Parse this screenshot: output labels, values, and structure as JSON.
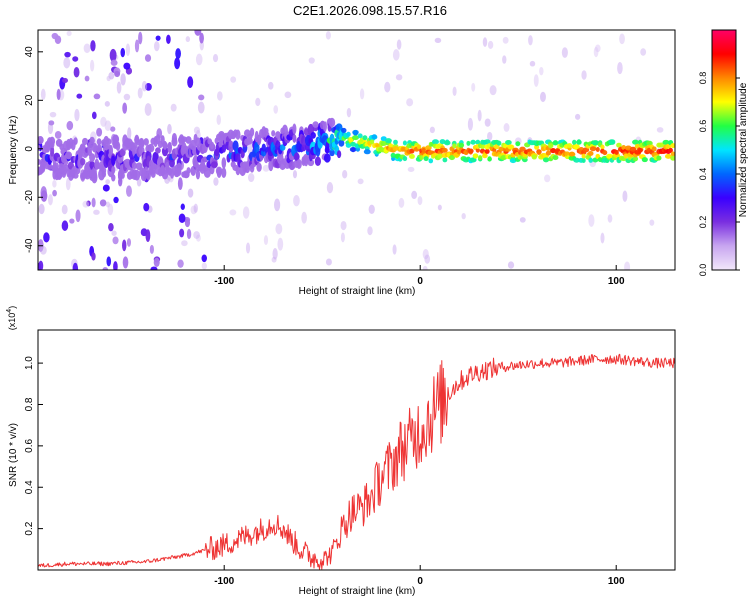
{
  "figure_title": "C2E1.2026.098.15.57.R16",
  "chart_data": [
    {
      "type": "heatmap",
      "title": "C2E1.2026.098.15.57.R16",
      "xlabel": "Height of straight line (km)",
      "ylabel": "Frequency (Hz)",
      "xlim": [
        -195,
        130
      ],
      "ylim": [
        -50,
        49
      ],
      "x_ticks": [
        -100,
        0,
        100
      ],
      "x_tick_labels": [
        "-100",
        "0",
        "100"
      ],
      "y_ticks": [
        -40,
        -20,
        0,
        20,
        40
      ],
      "y_tick_labels": [
        "-40",
        "-20",
        "0",
        "20",
        "40"
      ],
      "colorbar": {
        "label": "Normalized spectral amplitude",
        "range": [
          0,
          1
        ],
        "ticks": [
          0.0,
          0.2,
          0.4,
          0.6,
          0.8
        ],
        "tick_labels": [
          "0.0",
          "0.2",
          "0.4",
          "0.6",
          "0.8"
        ],
        "colormap": [
          "#f2e8fa",
          "#c8a6f0",
          "#7a2fe0",
          "#3a00ff",
          "#0066ff",
          "#00e5ff",
          "#22ff44",
          "#ffff00",
          "#ff8800",
          "#ff0000",
          "#ff0066"
        ]
      },
      "description_points": {
        "ridge_x": [
          -140,
          -120,
          -100,
          -80,
          -60,
          -50,
          -40,
          -30,
          -20,
          -10,
          0,
          20,
          50,
          80,
          100,
          130
        ],
        "ridge_freq": [
          -4,
          -3,
          -2,
          0,
          1,
          3,
          4,
          3,
          1,
          -1,
          -1,
          -1,
          -1,
          -1,
          -1,
          -1
        ],
        "ridge_amplitude": [
          0.35,
          0.4,
          0.45,
          0.5,
          0.5,
          0.6,
          0.7,
          0.75,
          0.8,
          0.85,
          0.9,
          0.88,
          0.9,
          0.9,
          0.92,
          0.92
        ]
      }
    },
    {
      "type": "line",
      "xlabel": "Height of straight line (km)",
      "ylabel": "SNR (10 * v/v)",
      "y_multiplier_label": "(x10",
      "y_multiplier_exp": "4",
      "y_multiplier_close": ")",
      "xlim": [
        -195,
        130
      ],
      "ylim": [
        0,
        1.16
      ],
      "x_ticks": [
        -100,
        0,
        100
      ],
      "x_tick_labels": [
        "-100",
        "0",
        "100"
      ],
      "y_ticks": [
        0.2,
        0.4,
        0.6,
        0.8,
        1.0
      ],
      "y_tick_labels": [
        "0.2",
        "0.4",
        "0.6",
        "0.8",
        "1.0"
      ],
      "series": [
        {
          "name": "SNR",
          "color": "#ee3333",
          "x": [
            -195,
            -180,
            -160,
            -140,
            -120,
            -100,
            -90,
            -80,
            -75,
            -70,
            -65,
            -60,
            -55,
            -50,
            -45,
            -40,
            -35,
            -30,
            -25,
            -20,
            -15,
            -10,
            -5,
            0,
            5,
            10,
            15,
            20,
            25,
            30,
            40,
            50,
            60,
            70,
            80,
            90,
            100,
            110,
            120,
            130
          ],
          "y": [
            0.02,
            0.03,
            0.03,
            0.04,
            0.07,
            0.12,
            0.16,
            0.2,
            0.23,
            0.2,
            0.14,
            0.09,
            0.06,
            0.05,
            0.08,
            0.2,
            0.28,
            0.3,
            0.35,
            0.45,
            0.5,
            0.58,
            0.62,
            0.68,
            0.74,
            0.8,
            0.86,
            0.91,
            0.94,
            0.96,
            0.98,
            0.99,
            1.0,
            1.0,
            1.01,
            1.02,
            1.02,
            1.01,
            1.0,
            1.0
          ]
        }
      ]
    }
  ]
}
